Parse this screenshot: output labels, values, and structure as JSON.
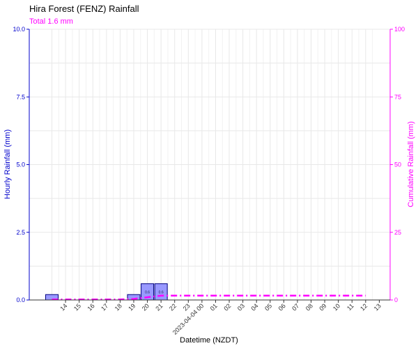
{
  "chart_data": {
    "type": "bar",
    "title": "Hira Forest (FENZ) Rainfall",
    "subtitle": "Total 1.6 mm",
    "xlabel": "Datetime (NZDT)",
    "ylabel": "Hourly Rainfall (mm)",
    "y2label": "Cumulative Rainfall (mm)",
    "ylim": [
      0,
      10
    ],
    "y2lim": [
      0,
      100
    ],
    "yticks": [
      "0.0",
      "2.5",
      "5.0",
      "7.5",
      "10.0"
    ],
    "y2ticks": [
      "0",
      "25",
      "50",
      "75",
      "100"
    ],
    "x_ticks": [
      "14",
      "15",
      "16",
      "17",
      "18",
      "19",
      "20",
      "21",
      "22",
      "23",
      "2023-04-04 00",
      "01",
      "02",
      "03",
      "04",
      "05",
      "06",
      "07",
      "08",
      "09",
      "10",
      "11",
      "12",
      "13"
    ],
    "categories": [
      "13",
      "14",
      "15",
      "16",
      "17",
      "18",
      "19",
      "20",
      "21",
      "22",
      "2023-04-04 00",
      "01",
      "02",
      "03",
      "04",
      "05",
      "06",
      "07",
      "08",
      "09",
      "10",
      "11",
      "12",
      "13"
    ],
    "series": [
      {
        "kind": "bar",
        "axis": "left",
        "values": [
          0.2,
          0,
          0,
          0,
          0,
          0,
          0.2,
          0.6,
          0.6,
          0,
          0,
          0,
          0,
          0,
          0,
          0,
          0,
          0,
          0,
          0,
          0,
          0,
          0,
          0
        ],
        "labels": [
          "",
          "",
          "",
          "",
          "",
          "",
          "",
          "0.6",
          "0.6",
          "",
          "",
          "",
          "",
          "",
          "",
          "",
          "",
          "",
          "",
          "",
          "",
          "",
          "",
          ""
        ]
      },
      {
        "kind": "line",
        "axis": "right",
        "style": "dash-dot",
        "values": [
          0.2,
          0.2,
          0.2,
          0.2,
          0.2,
          0.2,
          0.4,
          1.0,
          1.6,
          1.6,
          1.6,
          1.6,
          1.6,
          1.6,
          1.6,
          1.6,
          1.6,
          1.6,
          1.6,
          1.6,
          1.6,
          1.6,
          1.6,
          1.6
        ]
      }
    ],
    "grid": true,
    "colors": {
      "left_axis": "#0000cc",
      "right_axis": "#ff00ff",
      "bar_fill": "#9999ff",
      "bar_stroke": "#000080",
      "line": "#ff00ff",
      "grid": "#e8e8e8"
    }
  }
}
